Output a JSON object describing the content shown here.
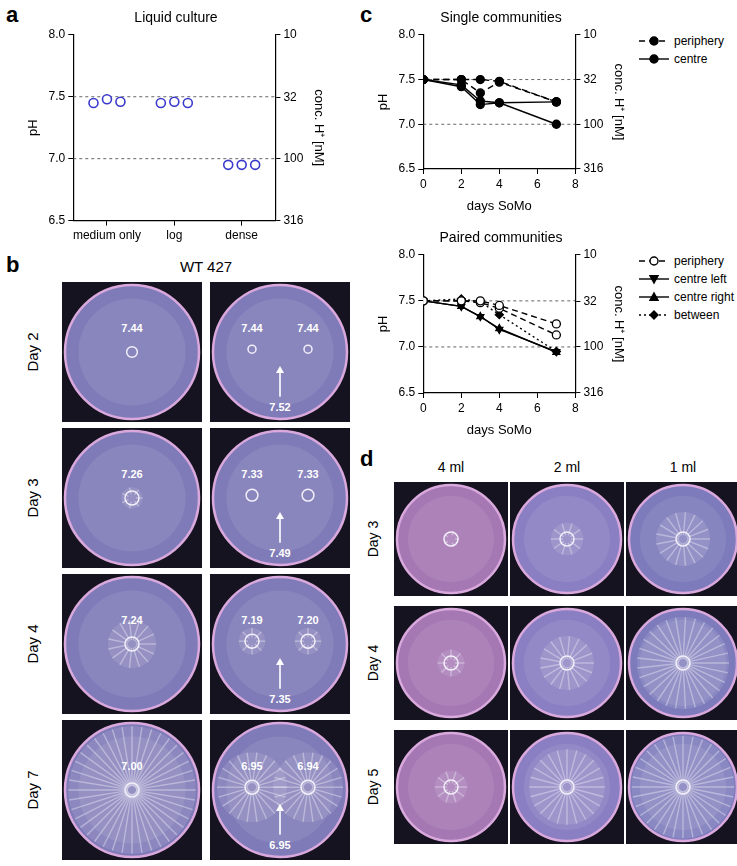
{
  "panel_labels": [
    "a",
    "b",
    "c",
    "d"
  ],
  "chart_data": [
    {
      "panel": "a",
      "type": "scatter",
      "title": "Liquid culture",
      "categories": [
        "medium only",
        "log",
        "dense"
      ],
      "values": [
        [
          7.45,
          7.48,
          7.46
        ],
        [
          7.45,
          7.46,
          7.45
        ],
        [
          6.95,
          6.95,
          6.95
        ]
      ],
      "color": "#3a3acc",
      "marker": "open_circle",
      "y_label": "pH",
      "y2_label": "conc. H⁺ [nM]",
      "ylim": [
        6.5,
        8.0
      ],
      "yticks": [
        6.5,
        {
          "value": 7,
          "label": "7.0"
        },
        7.5,
        {
          "value": 8,
          "label": "8.0"
        }
      ],
      "y2lim": [
        316.2,
        10
      ],
      "y2ticks": [
        316,
        100,
        32,
        10
      ],
      "log": "y2",
      "hlines": [
        7.0,
        7.5
      ],
      "grid": false
    },
    {
      "panel": "c",
      "type": "line",
      "title": "Single communities",
      "x_label": "days SoMo",
      "y_label": "pH",
      "y2_label": "conc. H⁺ [nM]",
      "x": [
        0,
        2,
        3,
        4,
        7
      ],
      "xlim": [
        0,
        8
      ],
      "xticks": [
        0,
        2,
        4,
        6,
        8
      ],
      "ylim": [
        6.5,
        8.0
      ],
      "yticks": [
        6.5,
        {
          "value": 7,
          "label": "7.0"
        },
        7.5,
        {
          "value": 8,
          "label": "8.0"
        }
      ],
      "y2lim": [
        316.2,
        10
      ],
      "y2ticks": [
        316,
        100,
        32,
        10
      ],
      "log": "y2",
      "hlines": [
        7.0,
        7.5
      ],
      "grid": false,
      "legend": "right",
      "series": [
        {
          "name": "periphery",
          "color": "#000000",
          "marker": "circle",
          "line_style": "dashed",
          "values": [
            7.5,
            7.5,
            7.5,
            7.48,
            7.25
          ]
        },
        {
          "name": "periphery",
          "color": "#000000",
          "marker": "circle",
          "line_style": "dashed",
          "values": [
            7.5,
            7.5,
            7.35,
            7.47,
            7.25
          ]
        },
        {
          "name": "centre",
          "color": "#000000",
          "marker": "circle",
          "line_style": "solid",
          "values": [
            7.5,
            7.44,
            7.26,
            7.24,
            7.0
          ]
        },
        {
          "name": "centre",
          "color": "#000000",
          "marker": "circle",
          "line_style": "solid",
          "values": [
            7.5,
            7.42,
            7.22,
            7.24,
            7.25
          ]
        }
      ]
    },
    {
      "panel": "c",
      "type": "line",
      "title": "Paired communities",
      "x_label": "days SoMo",
      "y_label": "pH",
      "y2_label": "conc. H⁺ [nM]",
      "x": [
        0,
        2,
        3,
        4,
        7
      ],
      "xlim": [
        0,
        8
      ],
      "xticks": [
        0,
        2,
        4,
        6,
        8
      ],
      "ylim": [
        6.5,
        8.0
      ],
      "yticks": [
        6.5,
        {
          "value": 7,
          "label": "7.0"
        },
        7.5,
        {
          "value": 8,
          "label": "8.0"
        }
      ],
      "y2lim": [
        316.2,
        10
      ],
      "y2ticks": [
        316,
        100,
        32,
        10
      ],
      "log": "y2",
      "hlines": [
        7.0,
        7.5
      ],
      "grid": false,
      "legend": "right",
      "series": [
        {
          "name": "periphery",
          "color": "#000000",
          "marker": "open_circle",
          "line_style": "dashed",
          "values": [
            7.5,
            7.5,
            7.5,
            7.45,
            7.25
          ]
        },
        {
          "name": "periphery",
          "color": "#000000",
          "marker": "open_circle",
          "line_style": "dashed",
          "values": [
            7.5,
            7.5,
            7.48,
            7.42,
            7.13
          ]
        },
        {
          "name": "centre left",
          "color": "#000000",
          "marker": "triangle_down",
          "line_style": "solid",
          "values": [
            7.5,
            7.44,
            7.33,
            7.19,
            6.95
          ]
        },
        {
          "name": "centre right",
          "color": "#000000",
          "marker": "triangle_up",
          "line_style": "solid",
          "values": [
            7.5,
            7.44,
            7.33,
            7.2,
            6.94
          ]
        },
        {
          "name": "between",
          "color": "#000000",
          "marker": "diamond",
          "line_style": "dotted",
          "values": [
            7.5,
            7.52,
            7.49,
            7.35,
            6.95
          ]
        }
      ]
    }
  ],
  "photo_b": {
    "title": "WT 427",
    "rows": [
      {
        "day": "Day 2",
        "single": "7.44",
        "paired": [
          "7.44",
          "7.44"
        ],
        "between": "7.52"
      },
      {
        "day": "Day 3",
        "single": "7.26",
        "paired": [
          "7.33",
          "7.33"
        ],
        "between": "7.49"
      },
      {
        "day": "Day 4",
        "single": "7.24",
        "paired": [
          "7.19",
          "7.20"
        ],
        "between": "7.35"
      },
      {
        "day": "Day 7",
        "single": "7.00",
        "paired": [
          "6.95",
          "6.94"
        ],
        "between": "6.95"
      }
    ]
  },
  "photo_d": {
    "columns": [
      "4 ml",
      "2 ml",
      "1 ml"
    ],
    "rows": [
      "Day 3",
      "Day 4",
      "Day 5"
    ]
  }
}
